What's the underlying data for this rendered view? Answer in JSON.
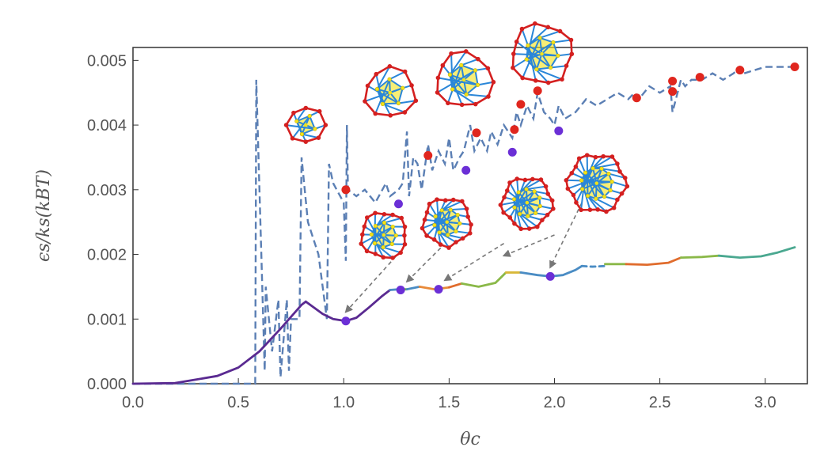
{
  "chart_data": {
    "type": "line",
    "title": "",
    "xlabel": "θc",
    "ylabel": "ϵs/ks(kBT)",
    "xlim": [
      0,
      3.2
    ],
    "ylim": [
      0,
      0.0052
    ],
    "x_ticks": [
      "0.0",
      "0.5",
      "1.0",
      "1.5",
      "2.0",
      "2.5",
      "3.0"
    ],
    "x_tick_values": [
      0,
      0.5,
      1,
      1.5,
      2,
      2.5,
      3
    ],
    "y_ticks": [
      "0.000",
      "0.001",
      "0.002",
      "0.003",
      "0.004",
      "0.005"
    ],
    "y_tick_values": [
      0,
      0.001,
      0.002,
      0.003,
      0.004,
      0.005
    ],
    "grid": false,
    "dashed_series": {
      "style": "dashed",
      "color": "#5b7fb4",
      "x": [
        0.0,
        0.58,
        0.585,
        0.625,
        0.63,
        0.66,
        0.69,
        0.7,
        0.73,
        0.74,
        0.75,
        0.79,
        0.8,
        0.83,
        0.88,
        0.92,
        0.93,
        0.95,
        1.0,
        1.01,
        1.015,
        1.02,
        1.06,
        1.1,
        1.15,
        1.2,
        1.22,
        1.26,
        1.28,
        1.3,
        1.31,
        1.33,
        1.35,
        1.37,
        1.4,
        1.42,
        1.45,
        1.48,
        1.5,
        1.52,
        1.55,
        1.57,
        1.6,
        1.62,
        1.65,
        1.68,
        1.7,
        1.73,
        1.76,
        1.8,
        1.82,
        1.84,
        1.87,
        1.9,
        1.92,
        1.95,
        1.98,
        2.0,
        2.02,
        2.05,
        2.1,
        2.15,
        2.2,
        2.25,
        2.3,
        2.35,
        2.38,
        2.4,
        2.45,
        2.5,
        2.55,
        2.56,
        2.6,
        2.62,
        2.65,
        2.68,
        2.7,
        2.75,
        2.8,
        2.85,
        2.88,
        2.9,
        3.0,
        3.1,
        3.14
      ],
      "y": [
        0.0,
        0.0,
        0.0047,
        0.0002,
        0.0015,
        0.0005,
        0.0013,
        0.0001,
        0.0013,
        0.0002,
        0.001,
        0.001,
        0.0035,
        0.0025,
        0.002,
        0.001,
        0.0034,
        0.0031,
        0.0028,
        0.0019,
        0.004,
        0.003,
        0.0029,
        0.003,
        0.0028,
        0.0031,
        0.0029,
        0.003,
        0.0031,
        0.0039,
        0.0029,
        0.0035,
        0.0034,
        0.003,
        0.0037,
        0.0033,
        0.0036,
        0.0034,
        0.0038,
        0.0033,
        0.0035,
        0.0036,
        0.004,
        0.0036,
        0.0038,
        0.0036,
        0.0039,
        0.0037,
        0.004,
        0.0038,
        0.0042,
        0.004,
        0.0043,
        0.0041,
        0.0045,
        0.0042,
        0.0041,
        0.004,
        0.0043,
        0.0041,
        0.0042,
        0.0044,
        0.0043,
        0.0044,
        0.0045,
        0.0044,
        0.0045,
        0.0044,
        0.0046,
        0.0045,
        0.0046,
        0.0042,
        0.0047,
        0.0046,
        0.0047,
        0.0047,
        0.0047,
        0.0048,
        0.0047,
        0.0048,
        0.0049,
        0.0048,
        0.0049,
        0.0049,
        0.0049
      ]
    },
    "red_points": [
      {
        "x": 1.01,
        "y": 0.003
      },
      {
        "x": 1.4,
        "y": 0.00353
      },
      {
        "x": 1.63,
        "y": 0.00388
      },
      {
        "x": 1.81,
        "y": 0.00393
      },
      {
        "x": 1.84,
        "y": 0.00432
      },
      {
        "x": 1.92,
        "y": 0.00453
      },
      {
        "x": 2.39,
        "y": 0.00442
      },
      {
        "x": 2.56,
        "y": 0.00452
      },
      {
        "x": 2.56,
        "y": 0.00468
      },
      {
        "x": 2.69,
        "y": 0.00474
      },
      {
        "x": 2.88,
        "y": 0.00485
      },
      {
        "x": 3.14,
        "y": 0.0049
      }
    ],
    "purple_points_upper": [
      {
        "x": 1.26,
        "y": 0.00278
      },
      {
        "x": 1.58,
        "y": 0.0033
      },
      {
        "x": 1.8,
        "y": 0.00358
      },
      {
        "x": 2.02,
        "y": 0.00391
      }
    ],
    "purple_points_lower": [
      {
        "x": 1.01,
        "y": 0.00097
      },
      {
        "x": 1.27,
        "y": 0.00145
      },
      {
        "x": 1.45,
        "y": 0.00146
      },
      {
        "x": 1.98,
        "y": 0.00166
      }
    ],
    "solid_segments": [
      {
        "color": "#5a2a91",
        "x": [
          0.0,
          0.2,
          0.4,
          0.5,
          0.6,
          0.7,
          0.8,
          0.82
        ],
        "y": [
          0.0,
          1e-05,
          0.00012,
          0.00025,
          0.0005,
          0.00085,
          0.00122,
          0.00127
        ]
      },
      {
        "color": "#5a2a91",
        "x": [
          0.82,
          0.9,
          0.95,
          1.01,
          1.06,
          1.12,
          1.18,
          1.22
        ],
        "y": [
          0.00127,
          0.00108,
          0.001,
          0.00097,
          0.00102,
          0.00118,
          0.00135,
          0.00145
        ]
      },
      {
        "color": "#4a8cc4",
        "x": [
          1.22,
          1.26
        ],
        "y": [
          0.00145,
          0.00146
        ]
      },
      {
        "color": "#6ab04c",
        "x": [
          1.26,
          1.3
        ],
        "y": [
          0.00146,
          0.00146
        ]
      },
      {
        "color": "#4a8cc4",
        "x": [
          1.3,
          1.36
        ],
        "y": [
          0.00146,
          0.0015
        ]
      },
      {
        "color": "#e88a3a",
        "x": [
          1.36,
          1.43,
          1.5
        ],
        "y": [
          0.0015,
          0.00146,
          0.00149
        ]
      },
      {
        "color": "#e06c2d",
        "x": [
          1.5,
          1.56
        ],
        "y": [
          0.00149,
          0.00155
        ]
      },
      {
        "color": "#8ab848",
        "x": [
          1.56,
          1.64,
          1.72,
          1.77
        ],
        "y": [
          0.00155,
          0.0015,
          0.00156,
          0.00172
        ]
      },
      {
        "color": "#d8b838",
        "x": [
          1.77,
          1.84
        ],
        "y": [
          0.00172,
          0.00172
        ]
      },
      {
        "color": "#4a8cc4",
        "x": [
          1.84,
          1.92,
          1.98,
          2.04,
          2.1,
          2.13
        ],
        "y": [
          0.00172,
          0.00168,
          0.00166,
          0.00168,
          0.00176,
          0.00182
        ]
      },
      {
        "color": "#4a8cc4",
        "x": [
          2.13,
          2.18,
          2.24
        ],
        "y": [
          0.00182,
          0.00181,
          0.00182
        ],
        "dashed": true
      },
      {
        "color": "#8ab848",
        "x": [
          2.24,
          2.34
        ],
        "y": [
          0.00185,
          0.00185
        ]
      },
      {
        "color": "#e06c2d",
        "x": [
          2.34,
          2.44,
          2.54,
          2.6
        ],
        "y": [
          0.00185,
          0.00184,
          0.00187,
          0.00195
        ]
      },
      {
        "color": "#8ab848",
        "x": [
          2.6,
          2.7,
          2.78
        ],
        "y": [
          0.00195,
          0.00196,
          0.00198
        ]
      },
      {
        "color": "#4aa890",
        "x": [
          2.78,
          2.88,
          2.98,
          3.06,
          3.14
        ],
        "y": [
          0.00198,
          0.00195,
          0.00197,
          0.00203,
          0.00211
        ]
      }
    ],
    "annotation_arrows": [
      {
        "from": [
          1.27,
          0.00205
        ],
        "to": [
          1.01,
          0.00111
        ]
      },
      {
        "from": [
          1.46,
          0.0021
        ],
        "to": [
          1.3,
          0.00158
        ]
      },
      {
        "from": [
          1.76,
          0.00217
        ],
        "to": [
          1.48,
          0.0016
        ]
      },
      {
        "from": [
          2.0,
          0.0023
        ],
        "to": [
          1.76,
          0.00198
        ]
      },
      {
        "from": [
          2.13,
          0.0028
        ],
        "to": [
          1.98,
          0.0018
        ]
      }
    ],
    "structure_icons": [
      {
        "x": 0.82,
        "y": 0.004,
        "size": 50
      },
      {
        "x": 1.22,
        "y": 0.0045,
        "size": 68
      },
      {
        "x": 1.57,
        "y": 0.0047,
        "size": 75
      },
      {
        "x": 1.94,
        "y": 0.0051,
        "size": 82
      },
      {
        "x": 1.19,
        "y": 0.0023,
        "size": 62
      },
      {
        "x": 1.49,
        "y": 0.0025,
        "size": 65
      },
      {
        "x": 1.87,
        "y": 0.0028,
        "size": 68
      },
      {
        "x": 2.2,
        "y": 0.0031,
        "size": 78
      }
    ],
    "colors": {
      "dashed": "#5b7fb4",
      "red_point": "#e0261e",
      "purple_point": "#6b2fd6",
      "arrow": "#777777",
      "icon_red": "#d42020",
      "icon_blue": "#2a86d8",
      "icon_yellow": "#f2e21a"
    }
  }
}
